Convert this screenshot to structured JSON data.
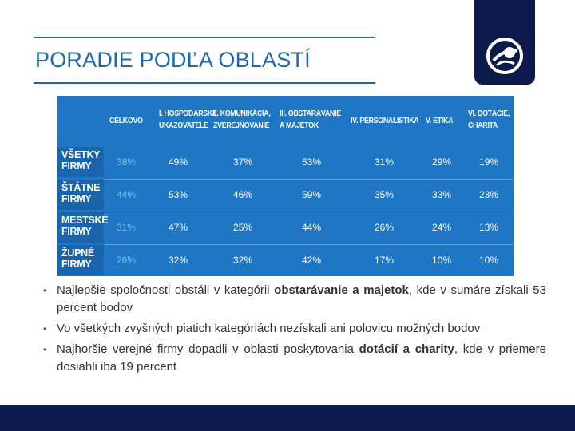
{
  "slide": {
    "title": "PORADIE PODĽA OBLASTÍ"
  },
  "logo": {
    "icon": "transparency-international-logo"
  },
  "table": {
    "columns": [
      "CELKOVO",
      "I. HOSPODÁRSKE\nUKAZOVATELE",
      "II. KOMUNIKÁCIA,\nZVEREJŇOVANIE",
      "III. OBSTARÁVANIE\nA MAJETOK",
      "IV. PERSONALISTIKA",
      "V. ETIKA",
      "VI. DOTÁCIE,\nCHARITA"
    ],
    "rows": [
      {
        "label": "VŠETKY\nFIRMY",
        "values": [
          "38%",
          "49%",
          "37%",
          "53%",
          "31%",
          "29%",
          "19%"
        ]
      },
      {
        "label": "ŠTÁTNE\nFIRMY",
        "values": [
          "44%",
          "53%",
          "46%",
          "59%",
          "35%",
          "33%",
          "23%"
        ]
      },
      {
        "label": "MESTSKÉ\nFIRMY",
        "values": [
          "31%",
          "47%",
          "25%",
          "44%",
          "26%",
          "24%",
          "13%"
        ]
      },
      {
        "label": "ŽUPNÉ\nFIRMY",
        "values": [
          "26%",
          "32%",
          "32%",
          "42%",
          "17%",
          "10%",
          "10%"
        ]
      }
    ]
  },
  "bullets": [
    {
      "before": "Najlepšie spoločnosti obstáli v kategórii ",
      "bold": "obstarávanie a majetok",
      "after": ", kde v sumáre získali 53 percent bodov"
    },
    {
      "before": "Vo všetkých zvyšných piatich kategóriách nezískali ani polovicu možných bodov",
      "bold": "",
      "after": ""
    },
    {
      "before": "Najhoršie verejné firmy dopadli v oblasti poskytovania ",
      "bold": "dotácií a charity",
      "after": ", kde v priemere dosiahli iba 19 percent"
    }
  ],
  "colors": {
    "accent": "#1d6ab4",
    "navy": "#0b1a4a",
    "table_bg": "#1e76c4",
    "label_bg": "#1a64ad",
    "first_col_text": "#7fc0f0"
  }
}
